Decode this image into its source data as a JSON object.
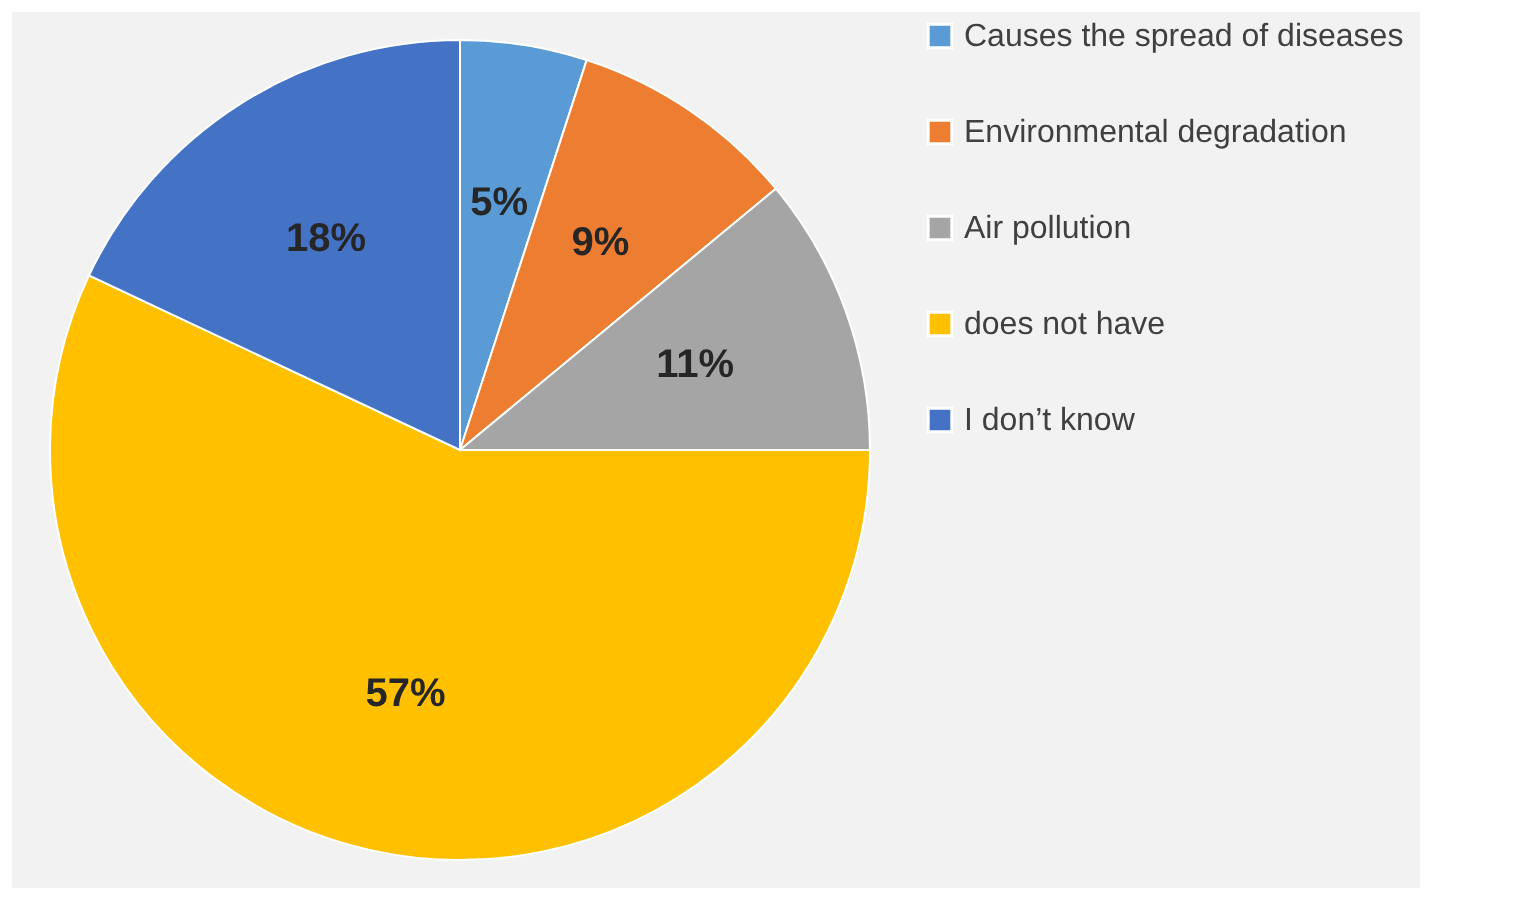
{
  "chart_data": {
    "type": "pie",
    "categories": [
      "Causes the spread of diseases",
      "Environmental degradation",
      "Air pollution",
      "does not have",
      "I don’t know"
    ],
    "values": [
      5,
      9,
      11,
      57,
      18
    ],
    "colors": [
      "#5b9bd5",
      "#ed7d31",
      "#a5a5a5",
      "#ffc000",
      "#4472c4"
    ],
    "value_labels": [
      "5%",
      "9%",
      "11%",
      "57%",
      "18%"
    ],
    "legend": "right"
  }
}
